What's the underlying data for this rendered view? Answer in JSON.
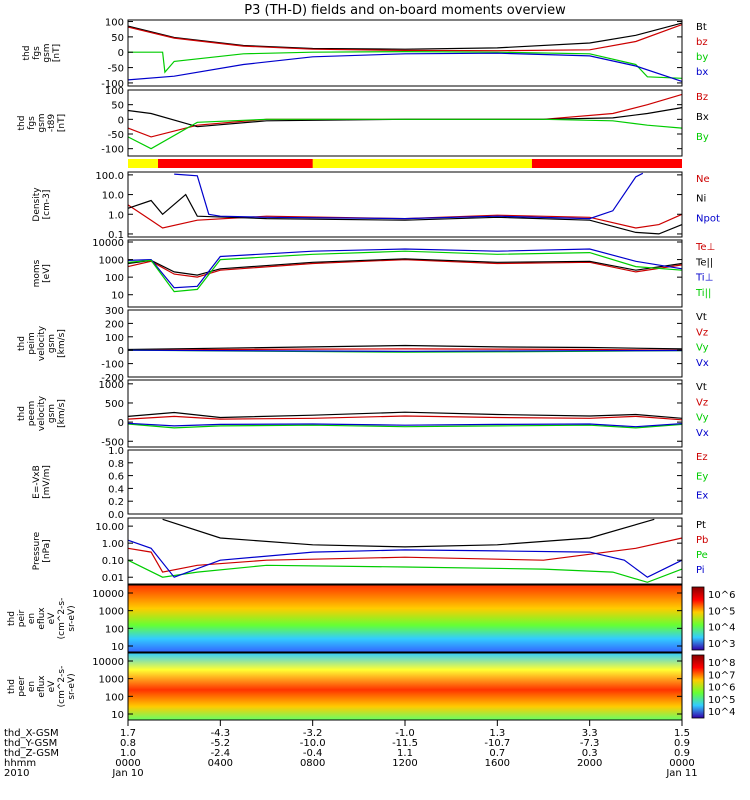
{
  "title": "P3 (TH-D) fields and on-board moments overview",
  "chart_data": [
    {
      "type": "line",
      "ylabel_lines": [
        "thd",
        "fgs",
        "gsm",
        "[nT]"
      ],
      "yticks": [
        "100",
        "50",
        "0",
        "-50",
        "-100"
      ],
      "ylim": [
        -110,
        105
      ],
      "series": [
        {
          "name": "Bt",
          "color": "#000000",
          "x": [
            0,
            2,
            5,
            8,
            12,
            16,
            20,
            22,
            24
          ],
          "values": [
            85,
            48,
            22,
            12,
            10,
            14,
            30,
            55,
            95
          ]
        },
        {
          "name": "bz",
          "color": "#cc0000",
          "x": [
            0,
            2,
            5,
            8,
            12,
            16,
            20,
            22,
            24
          ],
          "values": [
            82,
            46,
            20,
            10,
            6,
            5,
            8,
            35,
            90
          ]
        },
        {
          "name": "by",
          "color": "#00cc00",
          "x": [
            0,
            1.5,
            1.6,
            2,
            5,
            8,
            12,
            16,
            20,
            22,
            22.5,
            24
          ],
          "values": [
            0,
            0,
            -65,
            -30,
            -5,
            0,
            2,
            0,
            -5,
            -40,
            -80,
            -85
          ]
        },
        {
          "name": "bx",
          "color": "#0000cc",
          "x": [
            0,
            2,
            5,
            8,
            12,
            16,
            20,
            22,
            24
          ],
          "values": [
            -90,
            -78,
            -40,
            -15,
            -5,
            -3,
            -12,
            -45,
            -95
          ]
        }
      ]
    },
    {
      "type": "line",
      "ylabel_lines": [
        "thd",
        "fgs",
        "gsm",
        "-t89",
        "[nT]"
      ],
      "yticks": [
        "100",
        "50",
        "0",
        "-50",
        "-100"
      ],
      "ylim": [
        -125,
        100
      ],
      "series": [
        {
          "name": "Bz",
          "color": "#cc0000",
          "x": [
            0,
            1,
            3,
            6,
            12,
            18,
            21,
            22.5,
            24
          ],
          "values": [
            -30,
            -60,
            -20,
            0,
            0,
            0,
            20,
            50,
            85
          ]
        },
        {
          "name": "Bx",
          "color": "#000000",
          "x": [
            0,
            1,
            3,
            6,
            12,
            18,
            21,
            22.5,
            24
          ],
          "values": [
            30,
            20,
            -25,
            -5,
            0,
            0,
            5,
            20,
            40
          ]
        },
        {
          "name": "By",
          "color": "#00cc00",
          "x": [
            0,
            1,
            3,
            6,
            12,
            18,
            21,
            22.5,
            24
          ],
          "values": [
            -60,
            -100,
            -10,
            0,
            0,
            0,
            -5,
            -20,
            -30
          ]
        }
      ]
    },
    {
      "type": "line",
      "yscale": "log",
      "ylabel_lines": [
        "Density",
        "[cm-3]"
      ],
      "yticks": [
        "100.0",
        "10.0",
        "1.0",
        "0.1"
      ],
      "ylim": [
        0.07,
        140
      ],
      "series": [
        {
          "name": "Ne",
          "color": "#cc0000",
          "x": [
            0,
            1,
            1.5,
            3,
            6,
            12,
            16,
            20,
            22,
            23,
            24
          ],
          "values": [
            3,
            0.5,
            0.2,
            0.5,
            0.8,
            0.6,
            0.9,
            0.7,
            0.2,
            0.3,
            1.0
          ]
        },
        {
          "name": "Ni",
          "color": "#000000",
          "x": [
            0,
            1,
            1.5,
            2.5,
            3,
            6,
            12,
            16,
            20,
            22,
            23,
            24
          ],
          "values": [
            2,
            5,
            1.0,
            10,
            0.8,
            0.6,
            0.5,
            0.7,
            0.5,
            0.12,
            0.1,
            0.3
          ]
        },
        {
          "name": "Npot",
          "color": "#0000cc",
          "x": [
            2,
            3,
            3.5,
            4,
            6,
            12,
            16,
            20,
            21,
            22,
            22.3
          ],
          "values": [
            110,
            90,
            1.0,
            0.8,
            0.7,
            0.6,
            0.8,
            0.6,
            1.5,
            80,
            120
          ]
        }
      ]
    },
    {
      "type": "line",
      "yscale": "log",
      "ylabel_lines": [
        "moms",
        "[eV]"
      ],
      "yticks": [
        "10000",
        "1000",
        "100",
        "10"
      ],
      "ylim": [
        2,
        13000
      ],
      "series": [
        {
          "name": "Te⊥",
          "color": "#cc0000",
          "x": [
            0,
            1,
            2,
            3,
            4,
            8,
            12,
            16,
            20,
            22,
            24
          ],
          "values": [
            400,
            800,
            150,
            100,
            250,
            600,
            1000,
            600,
            700,
            200,
            500
          ]
        },
        {
          "name": "Te||",
          "color": "#000000",
          "x": [
            0,
            1,
            2,
            3,
            4,
            8,
            12,
            16,
            20,
            22,
            24
          ],
          "values": [
            600,
            900,
            200,
            130,
            300,
            700,
            1100,
            700,
            800,
            250,
            600
          ]
        },
        {
          "name": "Ti⊥",
          "color": "#0000cc",
          "x": [
            0,
            1,
            2,
            3,
            4,
            8,
            12,
            16,
            20,
            22,
            24
          ],
          "values": [
            900,
            1000,
            25,
            30,
            1500,
            3000,
            4000,
            3000,
            4000,
            800,
            300
          ]
        },
        {
          "name": "Ti||",
          "color": "#00cc00",
          "x": [
            0,
            1,
            2,
            3,
            4,
            8,
            12,
            16,
            20,
            22,
            24
          ],
          "values": [
            700,
            900,
            15,
            20,
            1000,
            2000,
            3000,
            2000,
            2500,
            400,
            250
          ]
        }
      ]
    },
    {
      "type": "line",
      "ylabel_lines": [
        "thd",
        "peim",
        "velocity",
        "gsm",
        "[km/s]"
      ],
      "yticks": [
        "300",
        "200",
        "100",
        "0",
        "-100",
        "-200"
      ],
      "ylim": [
        -200,
        300
      ],
      "series": [
        {
          "name": "Vt",
          "color": "#000000",
          "x": [
            0,
            4,
            8,
            12,
            16,
            20,
            24
          ],
          "values": [
            5,
            15,
            25,
            35,
            25,
            20,
            10
          ]
        },
        {
          "name": "Vz",
          "color": "#cc0000",
          "x": [
            0,
            4,
            8,
            12,
            16,
            20,
            24
          ],
          "values": [
            0,
            5,
            8,
            10,
            8,
            5,
            0
          ]
        },
        {
          "name": "Vy",
          "color": "#00cc00",
          "x": [
            0,
            4,
            8,
            12,
            16,
            20,
            24
          ],
          "values": [
            0,
            -5,
            -10,
            -15,
            -12,
            -8,
            -3
          ]
        },
        {
          "name": "Vx",
          "color": "#0000cc",
          "x": [
            0,
            4,
            8,
            12,
            16,
            20,
            24
          ],
          "values": [
            0,
            -3,
            -6,
            -8,
            -6,
            -4,
            -2
          ]
        }
      ]
    },
    {
      "type": "line",
      "ylabel_lines": [
        "thd",
        "peem",
        "velocity",
        "gsm",
        "[km/s]"
      ],
      "yticks": [
        "1000",
        "500",
        "0",
        "-500"
      ],
      "ylim": [
        -650,
        1100
      ],
      "series": [
        {
          "name": "Vt",
          "color": "#000000",
          "x": [
            0,
            2,
            4,
            8,
            12,
            16,
            20,
            22,
            24
          ],
          "values": [
            150,
            250,
            120,
            180,
            260,
            200,
            160,
            200,
            100
          ]
        },
        {
          "name": "Vz",
          "color": "#cc0000",
          "x": [
            0,
            2,
            4,
            8,
            12,
            16,
            20,
            22,
            24
          ],
          "values": [
            80,
            150,
            80,
            100,
            160,
            120,
            100,
            150,
            60
          ]
        },
        {
          "name": "Vy",
          "color": "#00cc00",
          "x": [
            0,
            2,
            4,
            8,
            12,
            16,
            20,
            22,
            24
          ],
          "values": [
            -50,
            -150,
            -100,
            -80,
            -120,
            -100,
            -80,
            -150,
            -60
          ]
        },
        {
          "name": "Vx",
          "color": "#0000cc",
          "x": [
            0,
            2,
            4,
            8,
            12,
            16,
            20,
            22,
            24
          ],
          "values": [
            -30,
            -100,
            -60,
            -50,
            -80,
            -60,
            -50,
            -120,
            -40
          ]
        }
      ]
    },
    {
      "type": "line",
      "ylabel_lines": [
        "E=-VxB",
        "[mV/m]"
      ],
      "yticks": [
        "1.0",
        "0.8",
        "0.6",
        "0.4",
        "0.2",
        "0.0"
      ],
      "ylim": [
        0,
        1
      ],
      "series": [
        {
          "name": "Ez",
          "color": "#cc0000",
          "x": [],
          "values": []
        },
        {
          "name": "Ey",
          "color": "#00cc00",
          "x": [],
          "values": []
        },
        {
          "name": "Ex",
          "color": "#0000cc",
          "x": [],
          "values": []
        }
      ]
    },
    {
      "type": "line",
      "yscale": "log",
      "ylabel_lines": [
        "Pressure",
        "[nPa]"
      ],
      "yticks": [
        "10.00",
        "1.00",
        "0.10",
        "0.01"
      ],
      "ylim": [
        0.004,
        30
      ],
      "series": [
        {
          "name": "Pt",
          "color": "#000000",
          "x": [
            1.5,
            4,
            8,
            12,
            16,
            20,
            22.8
          ],
          "values": [
            25,
            2,
            0.8,
            0.6,
            0.8,
            2,
            25
          ]
        },
        {
          "name": "Pb",
          "color": "#cc0000",
          "x": [
            0,
            1,
            1.5,
            3,
            6,
            12,
            18,
            22,
            24
          ],
          "values": [
            0.5,
            0.3,
            0.02,
            0.05,
            0.1,
            0.15,
            0.1,
            0.5,
            2
          ]
        },
        {
          "name": "Pe",
          "color": "#00cc00",
          "x": [
            0,
            1.5,
            3,
            6,
            12,
            18,
            21,
            22.5,
            24
          ],
          "values": [
            0.1,
            0.01,
            0.02,
            0.05,
            0.04,
            0.03,
            0.02,
            0.005,
            0.03
          ]
        },
        {
          "name": "Pi",
          "color": "#0000cc",
          "x": [
            0,
            1,
            2,
            4,
            8,
            12,
            16,
            20,
            21.5,
            22.5,
            24
          ],
          "values": [
            1.5,
            0.5,
            0.01,
            0.1,
            0.3,
            0.4,
            0.35,
            0.3,
            0.1,
            0.01,
            0.1
          ]
        }
      ]
    },
    {
      "type": "heatmap",
      "ylabel_lines": [
        "thd",
        "peir",
        "en",
        "eflux",
        "eV",
        "(cm^2-s-",
        "sr-eV)"
      ],
      "yticks": [
        "10000",
        "1000",
        "100",
        "10"
      ],
      "colorbar_ticks": [
        "10^6",
        "10^5",
        "10^4",
        "10^3"
      ]
    },
    {
      "type": "heatmap",
      "ylabel_lines": [
        "thd",
        "peer",
        "en",
        "eflux",
        "eV",
        "(cm^2-s-",
        "sr-eV)"
      ],
      "yticks": [
        "10000",
        "1000",
        "100",
        "10"
      ],
      "colorbar_ticks": [
        "10^8",
        "10^7",
        "10^6",
        "10^5",
        "10^4"
      ]
    }
  ],
  "footer": {
    "row_labels": [
      "thd_X-GSM",
      "thd_Y-GSM",
      "thd_Z-GSM",
      "hhmm",
      "2010"
    ],
    "columns": [
      [
        "1.7",
        "0.8",
        "1.0",
        "0000",
        "Jan 10"
      ],
      [
        "-4.3",
        "-5.2",
        "-2.4",
        "0400",
        ""
      ],
      [
        "-3.2",
        "-10.0",
        "-0.4",
        "0800",
        ""
      ],
      [
        "-1.0",
        "-11.5",
        "1.1",
        "1200",
        ""
      ],
      [
        "1.3",
        "-10.7",
        "0.7",
        "1600",
        ""
      ],
      [
        "3.3",
        "-7.3",
        "0.3",
        "2000",
        ""
      ],
      [
        "1.5",
        "0.9",
        "0.9",
        "0000",
        "Jan 11"
      ]
    ]
  }
}
